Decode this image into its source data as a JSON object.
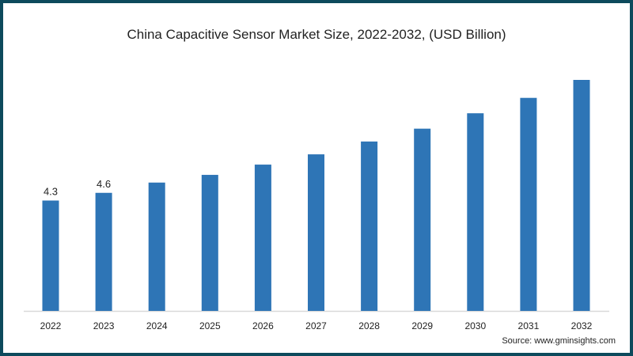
{
  "chart_data": {
    "type": "bar",
    "title": "China Capacitive Sensor Market Size, 2022-2032, (USD Billion)",
    "xlabel": "",
    "ylabel": "",
    "categories": [
      "2022",
      "2023",
      "2024",
      "2025",
      "2026",
      "2027",
      "2028",
      "2029",
      "2030",
      "2031",
      "2032"
    ],
    "values": [
      4.3,
      4.6,
      5.0,
      5.3,
      5.7,
      6.1,
      6.6,
      7.1,
      7.7,
      8.3,
      9.0
    ],
    "data_labels": [
      "4.3",
      "4.6",
      "",
      "",
      "",
      "",
      "",
      "",
      "",
      "",
      ""
    ],
    "ylim": [
      0,
      9.0
    ],
    "grid": false,
    "bar_color": "#2e75b6",
    "source": "Source: www.gminsights.com"
  }
}
